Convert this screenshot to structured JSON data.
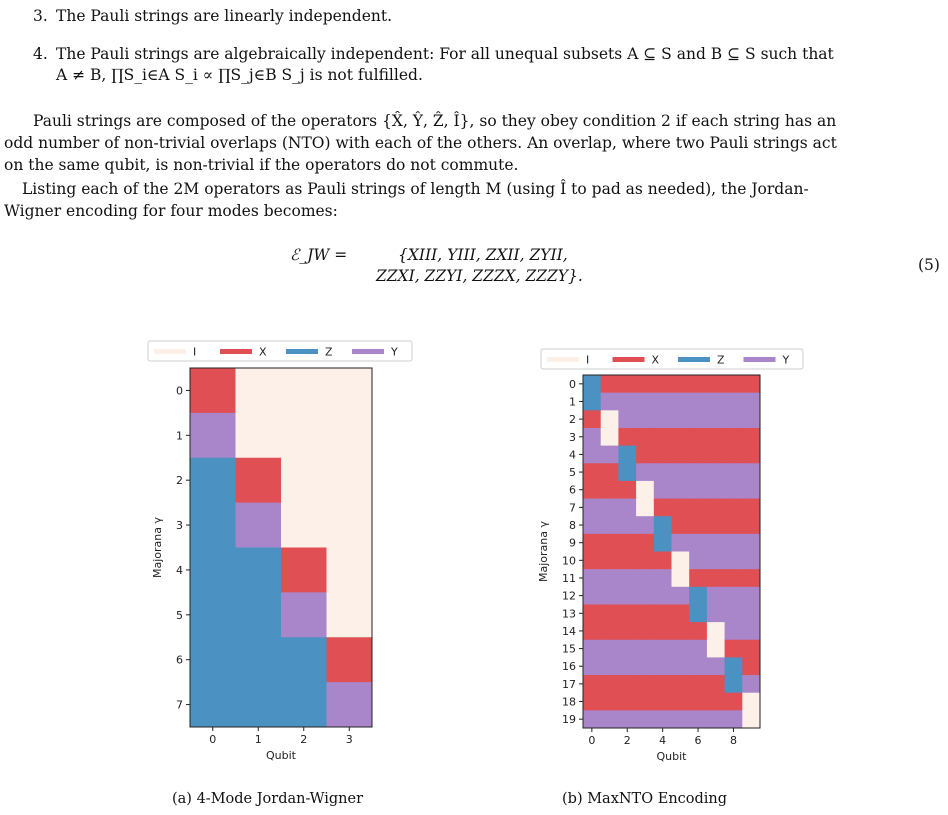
{
  "text": {
    "item3_num": "3.",
    "item3": "The Pauli strings are linearly independent.",
    "item4_num": "4.",
    "item4_a": "The Pauli strings are algebraically independent: For all unequal subsets A ⊆ S and B ⊆ S such that",
    "item4_b": "A ≠ B, ∏S_i∈A S_i ∝ ∏S_j∈B S_j is not fulfilled.",
    "para1_l1": "Pauli strings are composed of the operators {X̂, Ŷ, Ẑ, Î}, so they obey condition 2 if each string has an",
    "para1_l2": "odd number of non-trivial overlaps (NTO) with each of the others. An overlap, where two Pauli strings act",
    "para1_l3": "on the same qubit, is non-trivial if the operators do not commute.",
    "para2_l1": "Listing each of the 2M operators as Pauli strings of length M (using Î to pad as needed), the Jordan-",
    "para2_l2": "Wigner encoding for four modes becomes:",
    "eq_lhs": "ℰ_JW =",
    "eq_l1": "{XIII, YIII, ZXII, ZYII,",
    "eq_l2": "ZZXI, ZZYI, ZZZX, ZZZY}.",
    "eq_num": "(5)"
  },
  "colors": {
    "I": "#fcf0e9",
    "X": "#df4f54",
    "Z": "#4b91c1",
    "Y": "#a886c9"
  },
  "chart_data": [
    {
      "type": "heatmap",
      "caption": "(a) 4-Mode Jordan-Wigner",
      "xlabel": "Qubit",
      "ylabel": "Majorana γ",
      "legend": [
        "I",
        "X",
        "Z",
        "Y"
      ],
      "legend_position": "top",
      "x_ticks": [
        0,
        1,
        2,
        3
      ],
      "y_ticks": [
        0,
        1,
        2,
        3,
        4,
        5,
        6,
        7
      ],
      "rows": [
        "XIII",
        "YIII",
        "ZXII",
        "ZYII",
        "ZZXI",
        "ZZYI",
        "ZZZX",
        "ZZZY"
      ]
    },
    {
      "type": "heatmap",
      "caption": "(b) MaxNTO Encoding",
      "xlabel": "Qubit",
      "ylabel": "Majorana γ",
      "legend": [
        "I",
        "X",
        "Z",
        "Y"
      ],
      "legend_position": "top",
      "x_ticks": [
        0,
        2,
        4,
        6,
        8
      ],
      "y_ticks": [
        0,
        1,
        2,
        3,
        4,
        5,
        6,
        7,
        8,
        9,
        10,
        11,
        12,
        13,
        14,
        15,
        16,
        17,
        18,
        19
      ],
      "rows": [
        "ZXXXXXXXXX",
        "ZYYYYYYYYY",
        "XIYYYYYYYY",
        "YIXXXXXXXX",
        "YYZXXXXXXX",
        "XXZYYYYYYY",
        "XXXIYYYYYY",
        "YYYIXXXXXX",
        "YYYYZXXXXX",
        "XXXXZYYYYY",
        "XXXXXIYYYY",
        "YYYYYIXXXX",
        "YYYYYYZYYY",
        "XXXXXXZYYY",
        "XXXXXXXIYY",
        "YYYYYYYIXX",
        "YYYYYYYYZX",
        "XXXXXXXXZY",
        "XXXXXXXXXI",
        "YYYYYYYYYI"
      ]
    }
  ]
}
